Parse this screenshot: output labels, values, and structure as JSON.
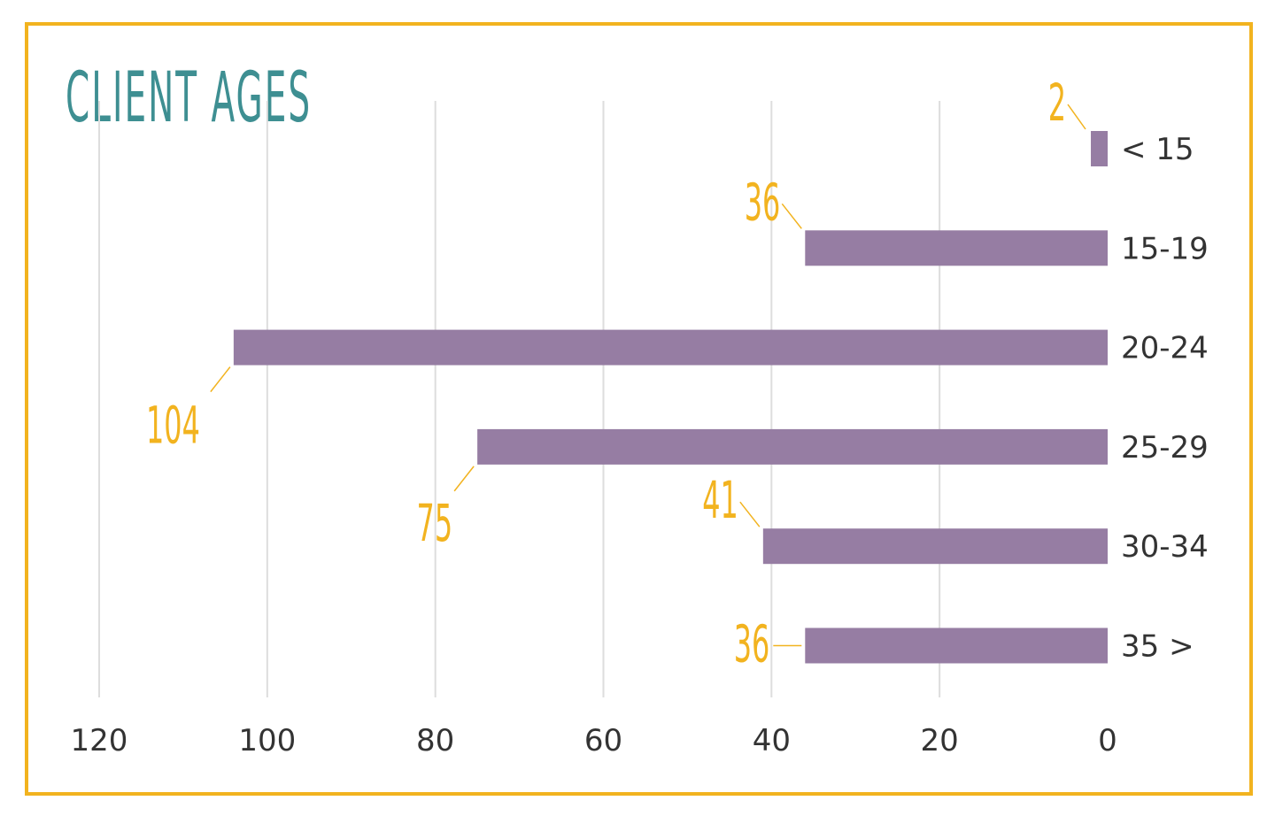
{
  "chart_data": {
    "type": "bar",
    "orientation": "horizontal",
    "x_direction": "reversed",
    "title": "CLIENT AGES",
    "categories": [
      "< 15",
      "15-19",
      "20-24",
      "25-29",
      "30-34",
      "35 >"
    ],
    "values": [
      2,
      36,
      104,
      75,
      41,
      36
    ],
    "data_labels": [
      "2",
      "36",
      "104",
      "75",
      "41",
      "36"
    ],
    "xlim": [
      0,
      120
    ],
    "x_ticks": [
      120,
      100,
      80,
      60,
      40,
      20,
      0
    ],
    "x_tick_labels": [
      "120",
      "100",
      "80",
      "60",
      "40",
      "20",
      "0"
    ],
    "grid": true,
    "colors": {
      "bar": "#967DA3",
      "label": "#F2B31F",
      "title": "#3E8F92",
      "frame": "#F2B31F",
      "grid": "#DDDDDD"
    }
  }
}
